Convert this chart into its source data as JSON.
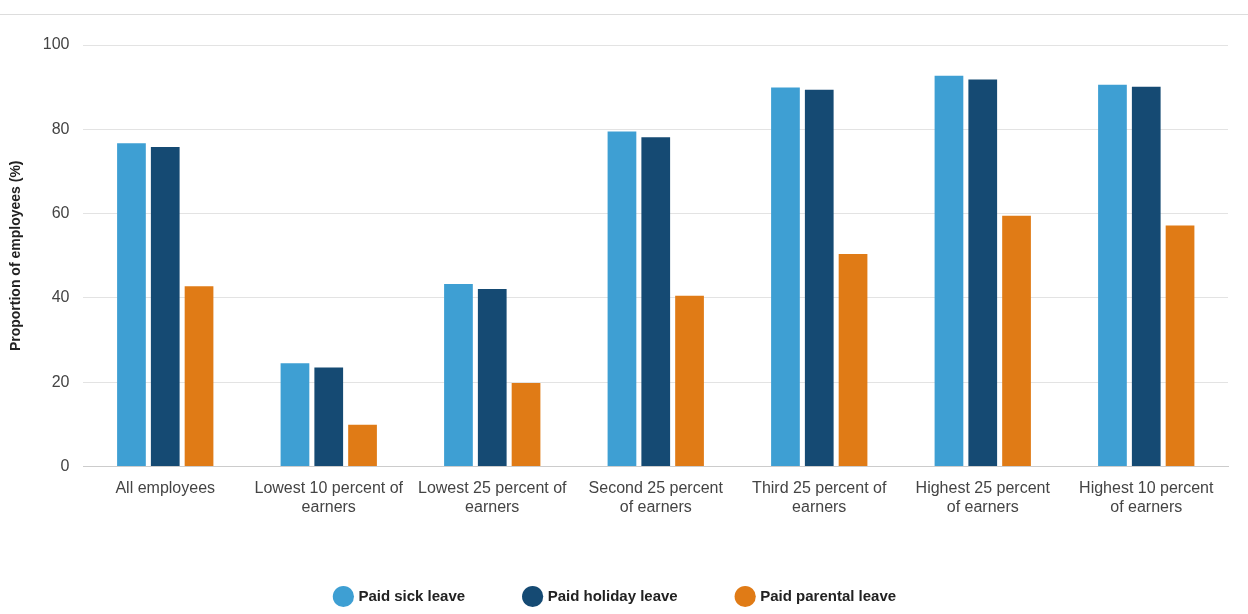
{
  "chart_data": {
    "type": "bar",
    "ylabel": "Proportion of employees (%)",
    "categories": [
      "All employees",
      "Lowest 10 percent of earners",
      "Lowest 25 percent of earners",
      "Second 25 percent of earners",
      "Third 25 percent of earners",
      "Highest 25 percent of earners",
      "Highest 10 percent of earners"
    ],
    "series": [
      {
        "name": "Paid sick leave",
        "color": "#3e9fd3",
        "values": [
          76.7,
          24.5,
          43.3,
          79.5,
          89.9,
          92.7,
          90.6
        ]
      },
      {
        "name": "Paid holiday leave",
        "color": "#154a73",
        "values": [
          75.8,
          23.5,
          42.1,
          78.1,
          89.4,
          91.8,
          90.1
        ]
      },
      {
        "name": "Paid parental leave",
        "color": "#e07b16",
        "values": [
          42.8,
          9.9,
          19.8,
          40.5,
          50.4,
          59.5,
          57.2
        ]
      }
    ],
    "ylim": [
      0,
      100
    ],
    "yticks": [
      0,
      20,
      40,
      60,
      80,
      100
    ],
    "grid": "y",
    "legend": "bottom"
  }
}
